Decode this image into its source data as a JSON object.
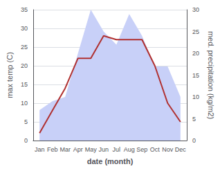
{
  "chart_data": {
    "type": "line",
    "categories": [
      "Jan",
      "Feb",
      "Mar",
      "Apr",
      "May",
      "Jun",
      "Jul",
      "Aug",
      "Sep",
      "Oct",
      "Nov",
      "Dec"
    ],
    "series": [
      {
        "type": "area",
        "color": "#c8d0f8",
        "axis": "y2",
        "values": [
          7,
          9,
          10,
          20,
          30,
          25,
          22,
          29,
          24,
          17,
          17,
          10
        ]
      },
      {
        "type": "line",
        "color": "#b03030",
        "values": [
          2,
          8,
          14,
          22,
          22,
          28,
          27,
          27,
          27,
          20,
          10,
          5
        ]
      }
    ],
    "xlabel": "date (month)",
    "ylabel": "max temp (C)",
    "y2label": "med. precipitation (kg/m2)",
    "ylim": [
      0,
      35
    ],
    "yticks": [
      0,
      5,
      10,
      15,
      20,
      25,
      30,
      35
    ],
    "y2lim": [
      0,
      30
    ],
    "y2ticks": [
      0,
      5,
      10,
      15,
      20,
      25,
      30
    ],
    "grid": true
  }
}
